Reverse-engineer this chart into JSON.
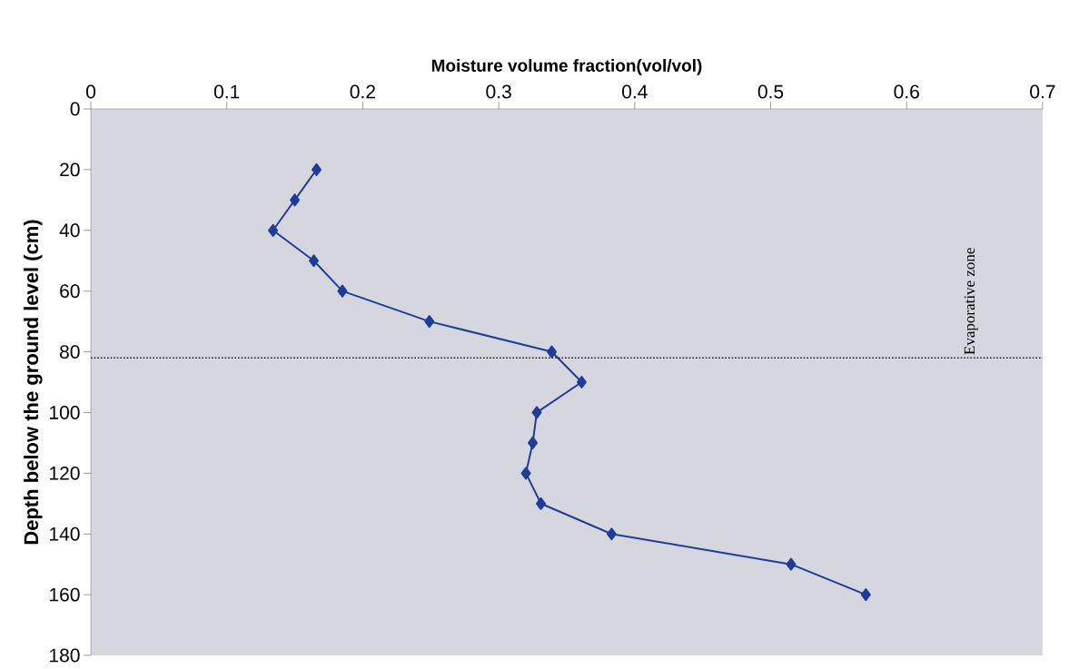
{
  "chart_data": {
    "type": "line",
    "xlabel": "Moisture volume fraction(vol/vol)",
    "ylabel": "Depth below the ground level (cm)",
    "series": [
      {
        "color": "#1f3c99",
        "x": [
          0.166,
          0.15,
          0.134,
          0.164,
          0.185,
          0.249,
          0.339,
          0.361,
          0.328,
          0.325,
          0.32,
          0.331,
          0.383,
          0.515,
          0.57
        ],
        "values": [
          20,
          30,
          40,
          50,
          60,
          70,
          80,
          90,
          100,
          110,
          120,
          130,
          140,
          150,
          160
        ]
      }
    ],
    "xlim": [
      0,
      0.7
    ],
    "xticks": [
      0,
      0.1,
      0.2,
      0.3,
      0.4,
      0.5,
      0.6,
      0.7
    ],
    "ylim": [
      180,
      0
    ],
    "yticks": [
      0,
      20,
      40,
      60,
      80,
      100,
      120,
      140,
      160,
      180
    ],
    "ref_lines": [
      {
        "axis": "y",
        "value": 82,
        "label": "Evaporative zone",
        "color": "#1a1a2e",
        "line_style": "dotted"
      }
    ],
    "marker": "diamond",
    "line_style": "solid",
    "grid": false
  }
}
